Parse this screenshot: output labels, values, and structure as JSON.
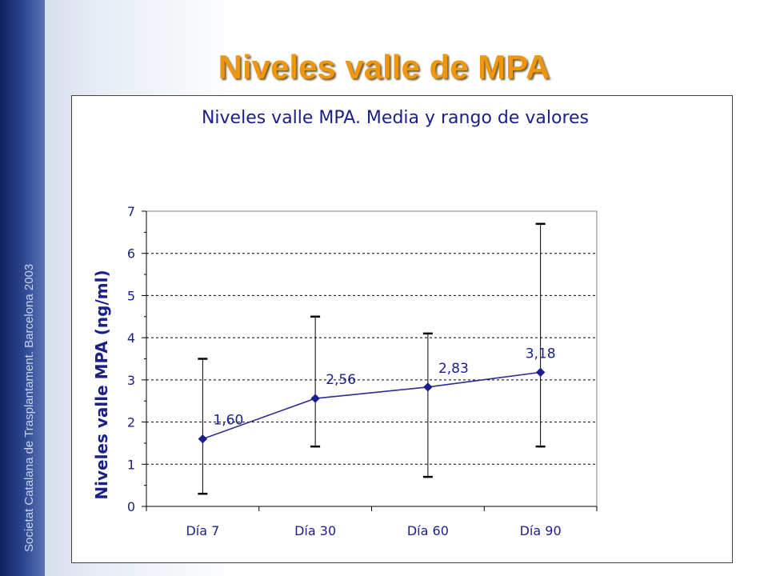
{
  "slide": {
    "title": "Niveles valle de MPA",
    "side_text": "Societat Catalana de Trasplantament. Barcelona 2003"
  },
  "chart_data": {
    "type": "line",
    "title": "Niveles valle MPA. Media y rango de valores",
    "xlabel": "",
    "ylabel": "Niveles valle MPA (ng/ml)",
    "ylim": [
      0,
      7
    ],
    "yticks": [
      "0",
      "1",
      "2",
      "3",
      "4",
      "5",
      "6",
      "7"
    ],
    "grid": "horizontal dashed",
    "categories": [
      "Día 7",
      "Día 30",
      "Día 60",
      "Día 90"
    ],
    "series": [
      {
        "values": [
          1.6,
          2.56,
          2.83,
          3.18
        ],
        "data_labels": [
          "1,60",
          "2,56",
          "2,83",
          "3,18"
        ],
        "range_min": [
          0.3,
          1.42,
          0.7,
          1.42
        ],
        "range_max": [
          3.5,
          4.5,
          4.1,
          6.7
        ]
      }
    ],
    "colors": {
      "series": "#2b2e8f",
      "marker": "#1a1f8c",
      "error_bar": "#000000",
      "text": "#1a1f8c"
    }
  }
}
